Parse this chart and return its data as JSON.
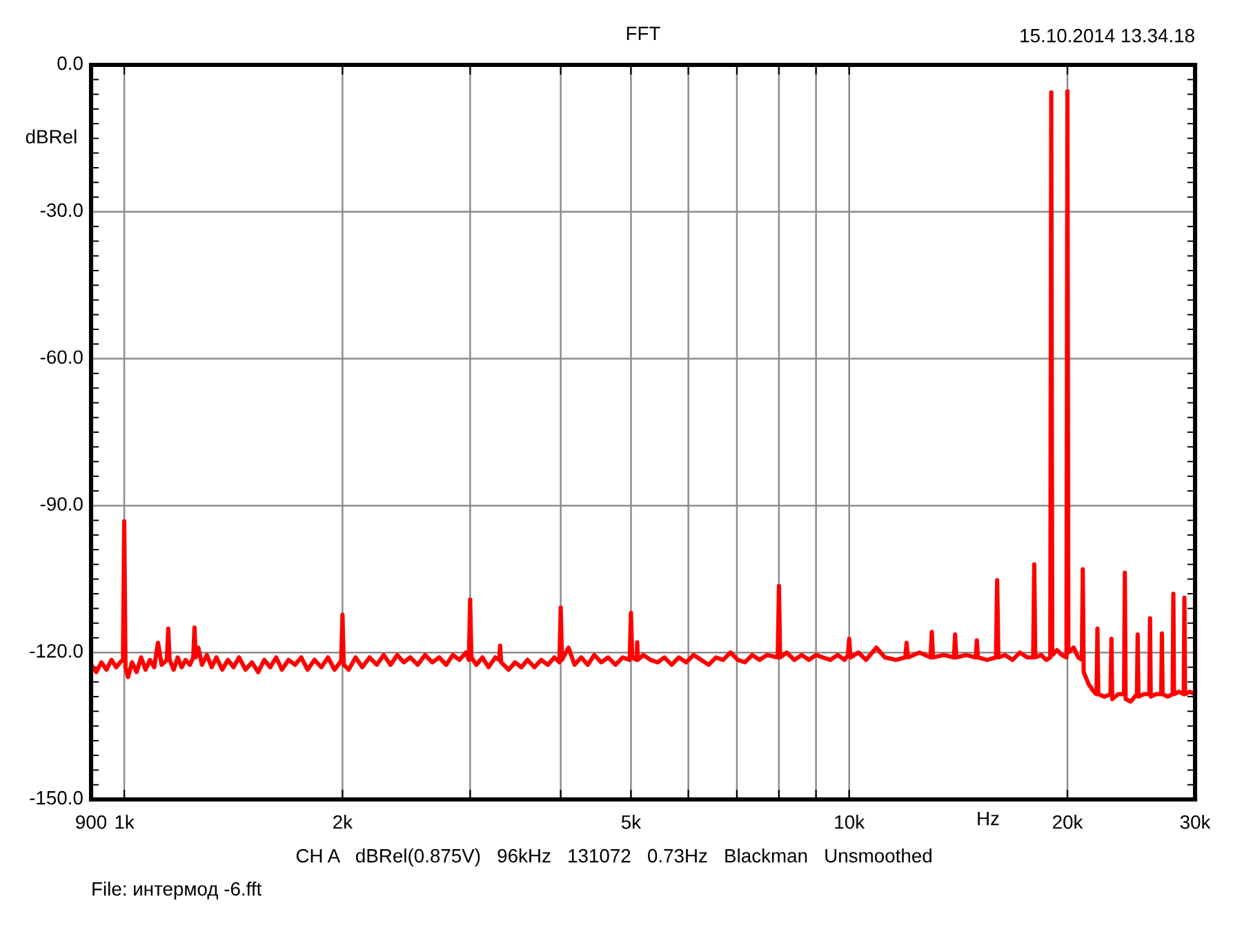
{
  "chart_data": {
    "type": "line",
    "title": "FFT",
    "xlabel": "Hz",
    "ylabel": "dBRel",
    "annotations": [
      "15.10.2014 13.34.18",
      "CH A   dBRel(0.875V)   96kHz   131072   0.73Hz   Blackman   Unsmoothed",
      "File: интермод -6.fft"
    ],
    "log": "x",
    "grid": true,
    "xlim": [
      900,
      30000
    ],
    "ylim": [
      -150,
      0
    ],
    "xticks": [
      {
        "value": 900,
        "label": "900"
      },
      {
        "value": 1000,
        "label": "1k"
      },
      {
        "value": 2000,
        "label": "2k"
      },
      {
        "value": 3000,
        "label": null
      },
      {
        "value": 4000,
        "label": null
      },
      {
        "value": 5000,
        "label": "5k"
      },
      {
        "value": 6000,
        "label": null
      },
      {
        "value": 7000,
        "label": null
      },
      {
        "value": 8000,
        "label": null
      },
      {
        "value": 9000,
        "label": null
      },
      {
        "value": 10000,
        "label": "10k"
      },
      {
        "value": 20000,
        "label": "20k"
      },
      {
        "value": 30000,
        "label": "30k"
      }
    ],
    "yticks": [
      {
        "value": -150,
        "label": "-150.0"
      },
      {
        "value": -120,
        "label": "-120.0"
      },
      {
        "value": -90,
        "label": "-90.0"
      },
      {
        "value": -60,
        "label": "-60.0"
      },
      {
        "value": -30,
        "label": "-30.0"
      },
      {
        "value": 0,
        "label": "0.0"
      }
    ],
    "x": [
      900,
      915,
      930,
      945,
      960,
      975,
      987,
      996,
      1000,
      1004,
      1012,
      1025,
      1040,
      1055,
      1070,
      1085,
      1100,
      1113,
      1126,
      1145,
      1150,
      1155,
      1170,
      1185,
      1200,
      1215,
      1232,
      1245,
      1250,
      1255,
      1265,
      1280,
      1300,
      1320,
      1340,
      1365,
      1390,
      1415,
      1440,
      1470,
      1500,
      1530,
      1560,
      1590,
      1620,
      1650,
      1685,
      1720,
      1755,
      1790,
      1830,
      1870,
      1910,
      1950,
      1985,
      1992,
      2000,
      2008,
      2040,
      2085,
      2130,
      2180,
      2230,
      2280,
      2330,
      2380,
      2430,
      2480,
      2540,
      2600,
      2660,
      2720,
      2780,
      2840,
      2900,
      2960,
      2988,
      3000,
      3012,
      3060,
      3120,
      3180,
      3250,
      3290,
      3300,
      3310,
      3390,
      3460,
      3530,
      3600,
      3680,
      3760,
      3840,
      3920,
      3984,
      4000,
      4016,
      4100,
      4180,
      4270,
      4360,
      4450,
      4550,
      4650,
      4760,
      4870,
      4980,
      5000,
      5020,
      5090,
      5100,
      5110,
      5200,
      5320,
      5440,
      5560,
      5690,
      5820,
      5960,
      6100,
      6250,
      6400,
      6550,
      6700,
      6860,
      7020,
      7180,
      7350,
      7520,
      7700,
      7970,
      8000,
      8030,
      8200,
      8400,
      8600,
      8800,
      9000,
      9200,
      9420,
      9640,
      9850,
      9960,
      10000,
      10040,
      10300,
      10550,
      10900,
      11200,
      11600,
      11950,
      12000,
      12050,
      12500,
      12950,
      13000,
      13050,
      13500,
      13950,
      14000,
      14050,
      14500,
      14950,
      15000,
      15050,
      15500,
      15940,
      16000,
      16060,
      16400,
      16800,
      17200,
      17600,
      17940,
      18000,
      18060,
      18400,
      18700,
      18940,
      19000,
      19060,
      19350,
      19650,
      19940,
      20000,
      20060,
      20400,
      20700,
      20940,
      21000,
      21060,
      21400,
      21750,
      21940,
      22000,
      22060,
      22500,
      22940,
      23000,
      23060,
      23500,
      23940,
      24000,
      24060,
      24450,
      24940,
      25000,
      25060,
      25500,
      25940,
      26000,
      26060,
      26500,
      26940,
      27000,
      27060,
      27500,
      27940,
      28000,
      28060,
      28500,
      28940,
      29000,
      29060,
      29500,
      30000
    ],
    "series": [
      {
        "color": "#ff0000",
        "values": [
          -122.5,
          -124,
          -122,
          -123.5,
          -121.5,
          -123,
          -122,
          -121.5,
          -93.2,
          -123,
          -125,
          -122,
          -124,
          -121,
          -123.5,
          -121.5,
          -123,
          -118,
          -122.5,
          -121.5,
          -115.1,
          -121.5,
          -123.5,
          -121,
          -123,
          -121.5,
          -122.5,
          -121,
          -114.9,
          -121,
          -119,
          -122.5,
          -120.5,
          -123,
          -121,
          -123.5,
          -121.5,
          -123,
          -121,
          -123.5,
          -122,
          -124,
          -121.5,
          -123,
          -121,
          -123.5,
          -121.5,
          -122.5,
          -121,
          -123.5,
          -121.5,
          -123,
          -121,
          -123.5,
          -122,
          -121.5,
          -112.3,
          -122.5,
          -123.5,
          -121,
          -123,
          -121,
          -122.5,
          -120.5,
          -122.5,
          -120.5,
          -122,
          -121,
          -122.5,
          -120.5,
          -122,
          -121,
          -122.5,
          -120.5,
          -121.5,
          -120,
          -121.5,
          -109.2,
          -121,
          -122.5,
          -121,
          -123,
          -121,
          -121.5,
          -118.6,
          -122,
          -123.5,
          -122,
          -123,
          -121.5,
          -123,
          -121.5,
          -122.5,
          -121,
          -122,
          -110.8,
          -121.5,
          -119,
          -122.5,
          -121,
          -122.5,
          -120.5,
          -122,
          -121,
          -122.5,
          -121,
          -121.5,
          -111.9,
          -121,
          -121.5,
          -117.9,
          -121.5,
          -120.5,
          -121.5,
          -122,
          -121,
          -122.5,
          -121,
          -122,
          -120.5,
          -121.5,
          -122.5,
          -121,
          -121.5,
          -120,
          -121.5,
          -122,
          -120.5,
          -121.5,
          -120.5,
          -121,
          -106.4,
          -121,
          -120,
          -121.5,
          -120.5,
          -121.5,
          -120.5,
          -121,
          -121.5,
          -120.5,
          -121.5,
          -120.5,
          -117.2,
          -121,
          -120,
          -121.5,
          -119,
          -121,
          -121.5,
          -121,
          -118,
          -121,
          -120,
          -121,
          -115.8,
          -121,
          -120.5,
          -121,
          -116.3,
          -121,
          -120.5,
          -121,
          -117.5,
          -121,
          -121.5,
          -121,
          -105.2,
          -121,
          -120.5,
          -121.5,
          -120,
          -121,
          -121,
          -102,
          -121,
          -120.5,
          -121.5,
          -121,
          -5.6,
          -120.5,
          -119.5,
          -120.5,
          -121,
          -5.4,
          -120,
          -119,
          -121,
          -121.5,
          -103,
          -124,
          -126.5,
          -128,
          -128.5,
          -115.1,
          -128.5,
          -129,
          -128.5,
          -117.2,
          -129.5,
          -128.5,
          -128.5,
          -103.7,
          -129.5,
          -130,
          -128.5,
          -116.3,
          -129,
          -128.5,
          -128.5,
          -113,
          -129,
          -128.5,
          -128.5,
          -116.1,
          -128.5,
          -129,
          -128.5,
          -108,
          -128.5,
          -128,
          -128.5,
          -108.8,
          -128.5,
          -128,
          -128.5
        ]
      }
    ]
  }
}
